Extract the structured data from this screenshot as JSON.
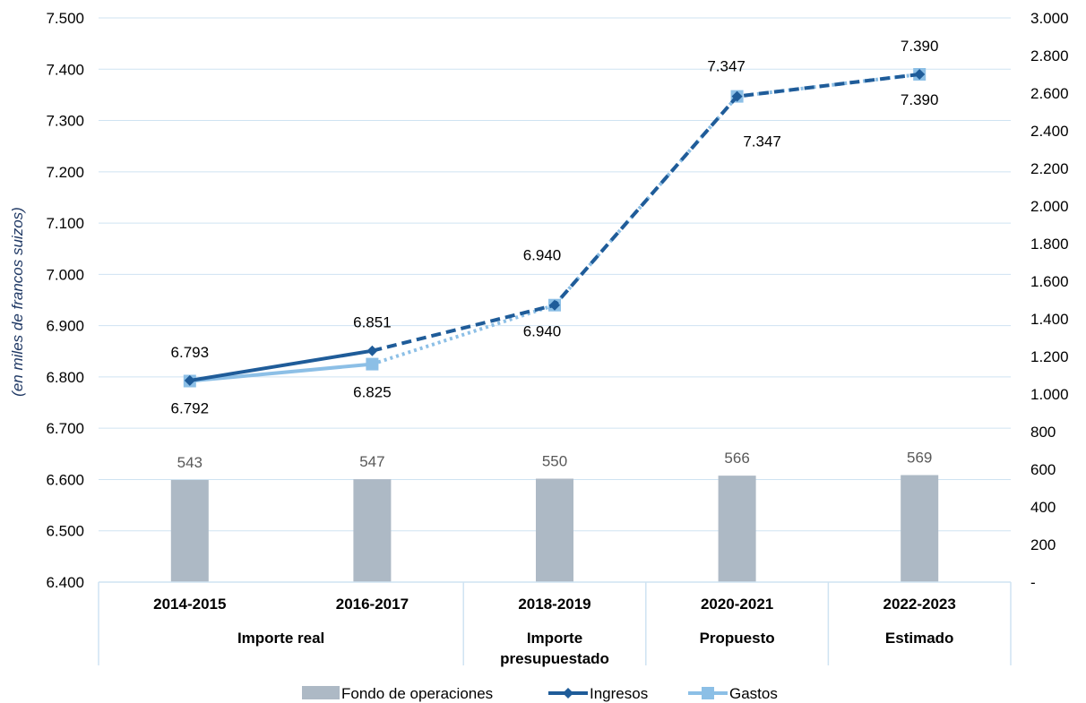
{
  "chart_data": {
    "type": "bar",
    "ylabel": "(en miles de francos suizos)",
    "ylim_left": [
      6400,
      7500
    ],
    "yticks_left": [
      "6.400",
      "6.500",
      "6.600",
      "6.700",
      "6.800",
      "6.900",
      "7.000",
      "7.100",
      "7.200",
      "7.300",
      "7.400",
      "7.500"
    ],
    "ylim_right": [
      0,
      3000
    ],
    "yticks_right": [
      "-",
      "200",
      "400",
      "600",
      "800",
      "1.000",
      "1.200",
      "1.400",
      "1.600",
      "1.800",
      "2.000",
      "2.200",
      "2.400",
      "2.600",
      "2.800",
      "3.000"
    ],
    "grid": true,
    "legend_position": "bottom",
    "categories": [
      "2014-2015",
      "2016-2017",
      "2018-2019",
      "2020-2021",
      "2022-2023"
    ],
    "groups": [
      {
        "label_lines": [
          "Importe real"
        ],
        "span": 2
      },
      {
        "label_lines": [
          "Importe",
          "presupuestado"
        ],
        "span": 1
      },
      {
        "label_lines": [
          "Propuesto"
        ],
        "span": 1
      },
      {
        "label_lines": [
          "Estimado"
        ],
        "span": 1
      }
    ],
    "series": [
      {
        "name": "Fondo de operaciones",
        "kind": "bar",
        "axis": "right",
        "color": "#adb9c5",
        "label_color": "#595959",
        "values": [
          543,
          547,
          550,
          566,
          569
        ],
        "labels": [
          "543",
          "547",
          "550",
          "566",
          "569"
        ]
      },
      {
        "name": "Ingresos",
        "kind": "line",
        "axis": "left",
        "color": "#1f5c99",
        "marker": "diamond",
        "label_color": "#1f3864",
        "values": [
          6793,
          6851,
          6940,
          7347,
          7390
        ],
        "labels": [
          "6.793",
          "6.851",
          "6.940",
          "7.347",
          "7.390"
        ],
        "solid_until_index": 1
      },
      {
        "name": "Gastos",
        "kind": "line",
        "axis": "left",
        "color": "#8cbfe6",
        "marker": "square",
        "label_color": "#4a9bd6",
        "values": [
          6792,
          6825,
          6940,
          7347,
          7390
        ],
        "labels": [
          "6.792",
          "6.825",
          "6.940",
          "7.347",
          "7.390"
        ],
        "solid_until_index": 1
      }
    ]
  }
}
